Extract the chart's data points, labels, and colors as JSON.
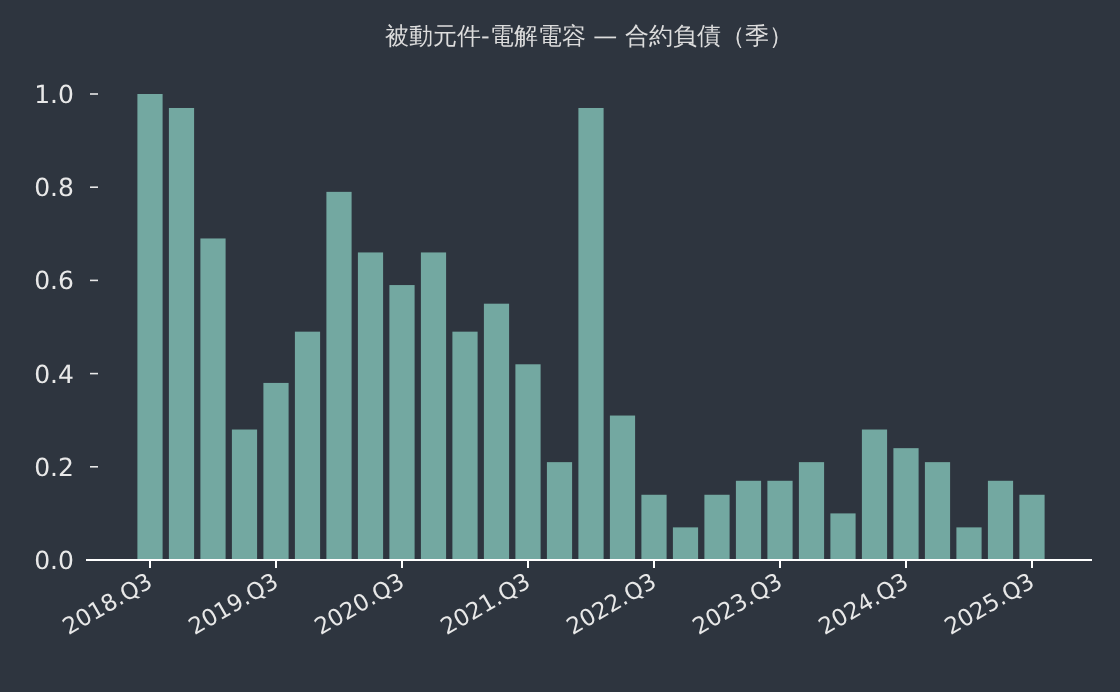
{
  "chart_data": {
    "type": "bar",
    "title": "被動元件-電解電容 — 合約負債（季）",
    "categories": [
      "2018.Q3",
      null,
      null,
      null,
      "2019.Q3",
      null,
      null,
      null,
      "2020.Q3",
      null,
      null,
      null,
      "2021.Q3",
      null,
      null,
      null,
      "2022.Q3",
      null,
      null,
      null,
      "2023.Q3",
      null,
      null,
      null,
      "2024.Q3",
      null,
      null,
      null,
      "2025.Q3"
    ],
    "values": [
      1.0,
      0.97,
      0.69,
      0.28,
      0.38,
      0.49,
      0.79,
      0.66,
      0.59,
      0.66,
      0.49,
      0.55,
      0.42,
      0.21,
      0.97,
      0.31,
      0.14,
      0.07,
      0.14,
      0.17,
      0.17,
      0.21,
      0.1,
      0.28,
      0.24,
      0.21,
      0.07,
      0.17,
      0.14
    ],
    "color": "#73a8a1",
    "ylim": [
      0,
      1.0
    ],
    "yticks": [
      {
        "value": 0,
        "label": "0.0"
      },
      0.2,
      0.4,
      0.6,
      0.8,
      {
        "value": 1,
        "label": "1.0"
      }
    ],
    "grid": false,
    "legend": false
  }
}
